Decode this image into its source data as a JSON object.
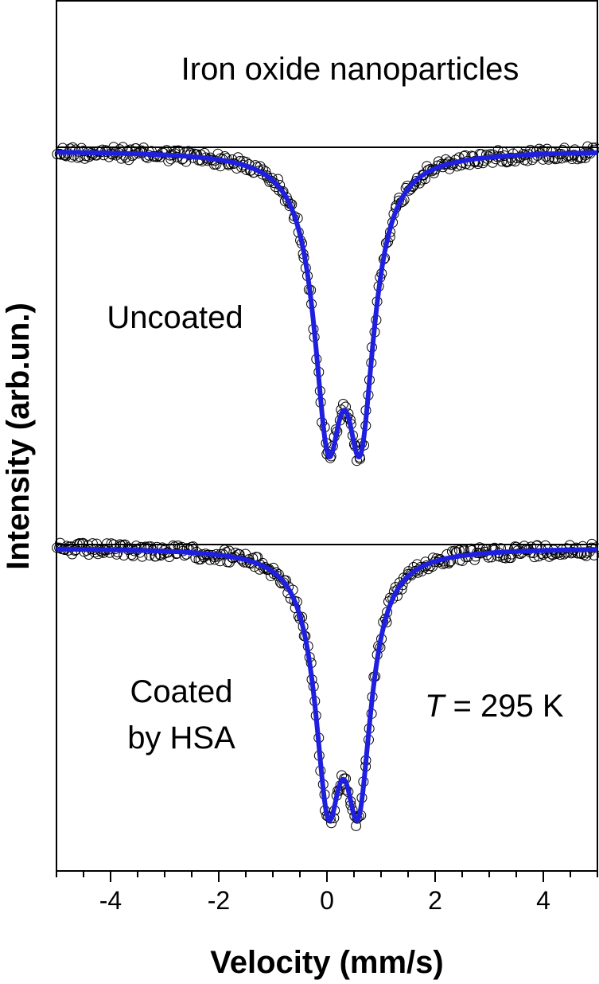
{
  "chart_data": {
    "type": "scatter",
    "title": "Iron oxide nanoparticles",
    "xlabel": "Velocity (mm/s)",
    "ylabel": "Intensity (arb.un.)",
    "xlim": [
      -5,
      5
    ],
    "xticks": [
      "-4",
      "-2",
      "0",
      "2",
      "4"
    ],
    "xtick_values": [
      -4,
      -2,
      0,
      2,
      4
    ],
    "minor_tick_step": 0.5,
    "annotation": {
      "italic": "T",
      "rest": " = 295 K"
    },
    "y_tick_labels": "none",
    "grid": false,
    "colors": {
      "fit": "#1f1fe0",
      "points": "#000000",
      "baseline": "#000000"
    },
    "series": [
      {
        "name": "Uncoated",
        "label_lines": [
          "Uncoated"
        ],
        "quadrupole_doublet": {
          "center1": 0.02,
          "center2": 0.62,
          "fwhm": 0.62,
          "depth_fraction": 1.0
        },
        "points_marker": "open-circle",
        "fit_line": true
      },
      {
        "name": "Coated by HSA",
        "label_lines": [
          "Coated",
          "by HSA"
        ],
        "quadrupole_doublet": {
          "center1": 0.02,
          "center2": 0.58,
          "fwhm": 0.58,
          "depth_fraction": 0.89
        },
        "points_marker": "open-circle",
        "fit_line": true
      }
    ]
  }
}
